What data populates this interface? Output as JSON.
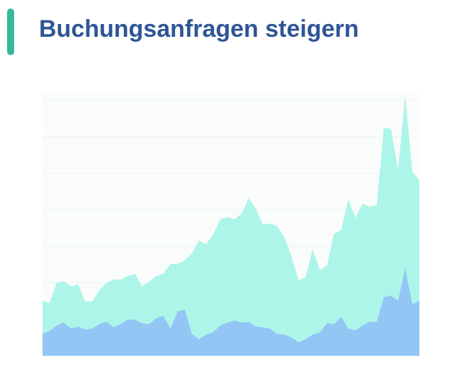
{
  "chart_data": {
    "type": "area",
    "title": "Buchungsanfragen steigern",
    "ylim": [
      0,
      7.2
    ],
    "yticks": [
      0,
      1,
      2,
      3,
      4,
      5,
      6,
      7
    ],
    "grid": true,
    "series": [
      {
        "color": "#adf5e8",
        "values": [
          1.51,
          1.45,
          2.0,
          2.04,
          1.9,
          1.96,
          1.49,
          1.49,
          1.8,
          2.0,
          2.09,
          2.09,
          2.19,
          2.25,
          1.9,
          2.04,
          2.19,
          2.25,
          2.52,
          2.52,
          2.62,
          2.81,
          3.16,
          3.06,
          3.32,
          3.74,
          3.8,
          3.74,
          3.9,
          4.32,
          4.03,
          3.59,
          3.63,
          3.55,
          3.26,
          2.73,
          2.07,
          2.15,
          2.93,
          2.35,
          2.48,
          3.35,
          3.45,
          4.29,
          3.78,
          4.17,
          4.09,
          4.13,
          6.26,
          6.22,
          5.1,
          7.14,
          5.04,
          4.81
        ]
      },
      {
        "color": "#93c5f5",
        "values": [
          0.6,
          0.68,
          0.83,
          0.91,
          0.74,
          0.8,
          0.72,
          0.74,
          0.87,
          0.93,
          0.78,
          0.87,
          0.99,
          0.99,
          0.89,
          0.87,
          1.03,
          1.09,
          0.74,
          1.22,
          1.26,
          0.6,
          0.45,
          0.58,
          0.64,
          0.83,
          0.91,
          0.97,
          0.91,
          0.93,
          0.8,
          0.78,
          0.74,
          0.6,
          0.58,
          0.5,
          0.37,
          0.45,
          0.58,
          0.64,
          0.89,
          0.87,
          1.07,
          0.74,
          0.7,
          0.83,
          0.93,
          0.93,
          1.61,
          1.65,
          1.51,
          2.39,
          1.42,
          1.51
        ]
      }
    ]
  }
}
